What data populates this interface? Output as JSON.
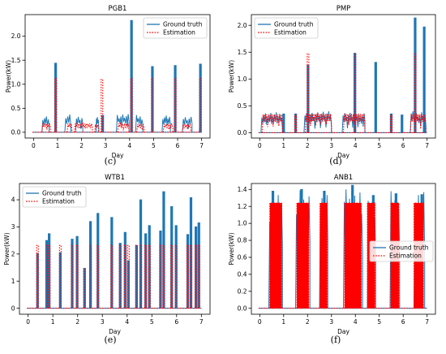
{
  "chart_data": [
    {
      "type": "line",
      "title": "PGB1",
      "caption": "(c)",
      "xlabel": "Day",
      "ylabel": "Power(kW)",
      "xlim": [
        -0.35,
        7.35
      ],
      "ylim": [
        -0.12,
        2.45
      ],
      "xticks": [
        0,
        1,
        2,
        3,
        4,
        5,
        6,
        7
      ],
      "yticks": [
        0.0,
        0.5,
        1.0,
        1.5,
        2.0
      ],
      "yformat": 1,
      "legend_position": "top-right",
      "series": [
        {
          "name": "Ground truth",
          "style": "solid",
          "color": "#1f77b4",
          "blocks": [
            [
              0.35,
              0.65,
              0.33
            ],
            [
              1.3,
              1.55,
              0.35
            ],
            [
              1.75,
              2.05,
              0.32
            ],
            [
              2.6,
              2.72,
              0.3
            ],
            [
              3.45,
              3.98,
              0.36
            ],
            [
              4.25,
              4.55,
              0.34
            ],
            [
              5.35,
              5.7,
              0.34
            ],
            [
              6.2,
              6.6,
              0.32
            ],
            [
              6.9,
              6.98,
              0.12
            ]
          ],
          "spikes": [
            [
              0.92,
              1.44
            ],
            [
              4.08,
              2.33
            ],
            [
              4.95,
              1.37
            ],
            [
              5.9,
              1.39
            ],
            [
              6.95,
              1.42
            ],
            [
              2.88,
              0.35
            ]
          ]
        },
        {
          "name": "Estimation",
          "style": "dotted",
          "color": "#ff0000",
          "blocks": [
            [
              0.35,
              0.7,
              0.18
            ],
            [
              1.4,
              1.6,
              0.18
            ],
            [
              1.7,
              2.45,
              0.18
            ],
            [
              2.55,
              2.7,
              0.16
            ],
            [
              3.5,
              3.98,
              0.18
            ],
            [
              4.3,
              4.6,
              0.17
            ],
            [
              5.4,
              5.8,
              0.17
            ],
            [
              6.2,
              6.55,
              0.16
            ]
          ],
          "spikes": [
            [
              0.92,
              1.12
            ],
            [
              4.08,
              1.12
            ],
            [
              4.95,
              1.12
            ],
            [
              5.9,
              1.12
            ],
            [
              6.95,
              1.12
            ],
            [
              2.85,
              1.1
            ]
          ]
        }
      ]
    },
    {
      "type": "line",
      "title": "PMP",
      "caption": "(d)",
      "xlabel": "Day",
      "ylabel": "Power(kW)",
      "xlim": [
        -0.35,
        7.35
      ],
      "ylim": [
        -0.1,
        2.2
      ],
      "xticks": [
        0,
        1,
        2,
        3,
        4,
        5,
        6,
        7
      ],
      "yticks": [
        0.0,
        0.5,
        1.0,
        1.5,
        2.0
      ],
      "yformat": 1,
      "legend_position": "top-left",
      "series": [
        {
          "name": "Ground truth",
          "style": "solid",
          "color": "#1f77b4",
          "blocks": [
            [
              0.05,
              0.95,
              0.36
            ],
            [
              1.85,
              3.0,
              0.38
            ],
            [
              3.45,
              4.4,
              0.36
            ],
            [
              6.3,
              6.95,
              0.38
            ]
          ],
          "spikes": [
            [
              2.02,
              1.26
            ],
            [
              3.98,
              1.48
            ],
            [
              4.85,
              1.31
            ],
            [
              6.5,
              2.14
            ],
            [
              6.88,
              1.97
            ],
            [
              1.0,
              0.35
            ],
            [
              1.5,
              0.35
            ],
            [
              5.5,
              0.35
            ],
            [
              5.95,
              0.33
            ]
          ]
        },
        {
          "name": "Estimation",
          "style": "dotted",
          "color": "#ff0000",
          "blocks": [
            [
              0.1,
              0.95,
              0.34
            ],
            [
              1.9,
              3.0,
              0.35
            ],
            [
              3.5,
              4.4,
              0.35
            ],
            [
              6.3,
              6.95,
              0.34
            ]
          ],
          "spikes": [
            [
              2.02,
              1.47
            ],
            [
              3.98,
              1.47
            ],
            [
              6.5,
              1.47
            ],
            [
              1.5,
              0.33
            ],
            [
              5.5,
              0.33
            ]
          ]
        }
      ]
    },
    {
      "type": "line",
      "title": "WTB1",
      "caption": "(e)",
      "xlabel": "Day",
      "ylabel": "Power(kW)",
      "xlim": [
        -0.35,
        7.35
      ],
      "ylim": [
        -0.22,
        4.6
      ],
      "xticks": [
        0,
        1,
        2,
        3,
        4,
        5,
        6,
        7
      ],
      "yticks": [
        0,
        1,
        2,
        3,
        4
      ],
      "yformat": 0,
      "legend_position": "top-left",
      "series": [
        {
          "name": "Ground truth",
          "style": "solid",
          "color": "#1f77b4",
          "blocks": [],
          "spikes": [
            [
              0.38,
              2.02
            ],
            [
              0.75,
              2.5
            ],
            [
              0.85,
              2.75
            ],
            [
              1.3,
              2.05
            ],
            [
              1.78,
              2.55
            ],
            [
              1.98,
              2.65
            ],
            [
              2.28,
              1.47
            ],
            [
              2.52,
              3.2
            ],
            [
              2.82,
              3.5
            ],
            [
              3.38,
              3.35
            ],
            [
              3.72,
              2.4
            ],
            [
              3.92,
              2.8
            ],
            [
              4.05,
              1.75
            ],
            [
              4.38,
              2.32
            ],
            [
              4.55,
              4.0
            ],
            [
              4.75,
              2.75
            ],
            [
              4.9,
              3.05
            ],
            [
              5.35,
              2.85
            ],
            [
              5.48,
              4.3
            ],
            [
              5.8,
              3.75
            ],
            [
              5.98,
              3.05
            ],
            [
              6.45,
              2.72
            ],
            [
              6.58,
              4.08
            ],
            [
              6.78,
              3.0
            ],
            [
              6.9,
              3.15
            ]
          ]
        },
        {
          "name": "Estimation",
          "style": "dotted",
          "color": "#ff0000",
          "blocks": [],
          "spikes": [
            [
              0.38,
              2.32
            ],
            [
              0.75,
              2.32
            ],
            [
              0.85,
              2.32
            ],
            [
              1.3,
              2.32
            ],
            [
              1.78,
              2.32
            ],
            [
              1.98,
              2.32
            ],
            [
              2.28,
              1.47
            ],
            [
              2.52,
              2.32
            ],
            [
              2.82,
              2.32
            ],
            [
              3.38,
              2.32
            ],
            [
              3.72,
              2.32
            ],
            [
              3.92,
              2.32
            ],
            [
              4.05,
              2.32
            ],
            [
              4.38,
              2.32
            ],
            [
              4.55,
              2.32
            ],
            [
              4.75,
              2.32
            ],
            [
              4.9,
              2.32
            ],
            [
              5.35,
              2.32
            ],
            [
              5.48,
              2.32
            ],
            [
              5.8,
              2.32
            ],
            [
              5.98,
              2.32
            ],
            [
              6.45,
              2.32
            ],
            [
              6.58,
              2.32
            ],
            [
              6.78,
              2.32
            ],
            [
              6.9,
              2.32
            ]
          ]
        }
      ]
    },
    {
      "type": "line",
      "title": "ANB1",
      "caption": "(f)",
      "xlabel": "Day",
      "ylabel": "Power(kW)",
      "xlim": [
        -0.35,
        7.35
      ],
      "ylim": [
        -0.07,
        1.47
      ],
      "xticks": [
        0,
        1,
        2,
        3,
        4,
        5,
        6,
        7
      ],
      "yticks": [
        0.0,
        0.2,
        0.4,
        0.6,
        0.8,
        1.0,
        1.2,
        1.4
      ],
      "yformat": 1,
      "legend_position": "center-right",
      "series": [
        {
          "name": "Ground truth",
          "style": "solid",
          "color": "#1f77b4",
          "blocks": [
            [
              0.38,
              0.95,
              1.3
            ],
            [
              1.5,
              2.1,
              1.32
            ],
            [
              2.5,
              2.85,
              1.3
            ],
            [
              3.5,
              4.3,
              1.33
            ],
            [
              4.5,
              4.85,
              1.27
            ],
            [
              5.45,
              5.85,
              1.31
            ],
            [
              6.45,
              6.9,
              1.3
            ]
          ],
          "spikes": [
            [
              0.55,
              1.38
            ],
            [
              1.75,
              1.4
            ],
            [
              2.7,
              1.38
            ],
            [
              3.88,
              1.45
            ],
            [
              4.75,
              1.33
            ],
            [
              5.7,
              1.35
            ],
            [
              6.78,
              1.34
            ]
          ]
        },
        {
          "name": "Estimation",
          "style": "dotted",
          "color": "#ff0000",
          "fill": true,
          "blocks": [
            [
              0.42,
              0.92,
              1.24
            ],
            [
              1.55,
              2.05,
              1.24
            ],
            [
              2.52,
              2.82,
              1.24
            ],
            [
              3.55,
              4.25,
              1.24
            ],
            [
              4.5,
              4.82,
              1.24
            ],
            [
              5.48,
              5.82,
              1.24
            ],
            [
              6.45,
              6.85,
              1.24
            ]
          ],
          "spikes": []
        }
      ]
    }
  ]
}
